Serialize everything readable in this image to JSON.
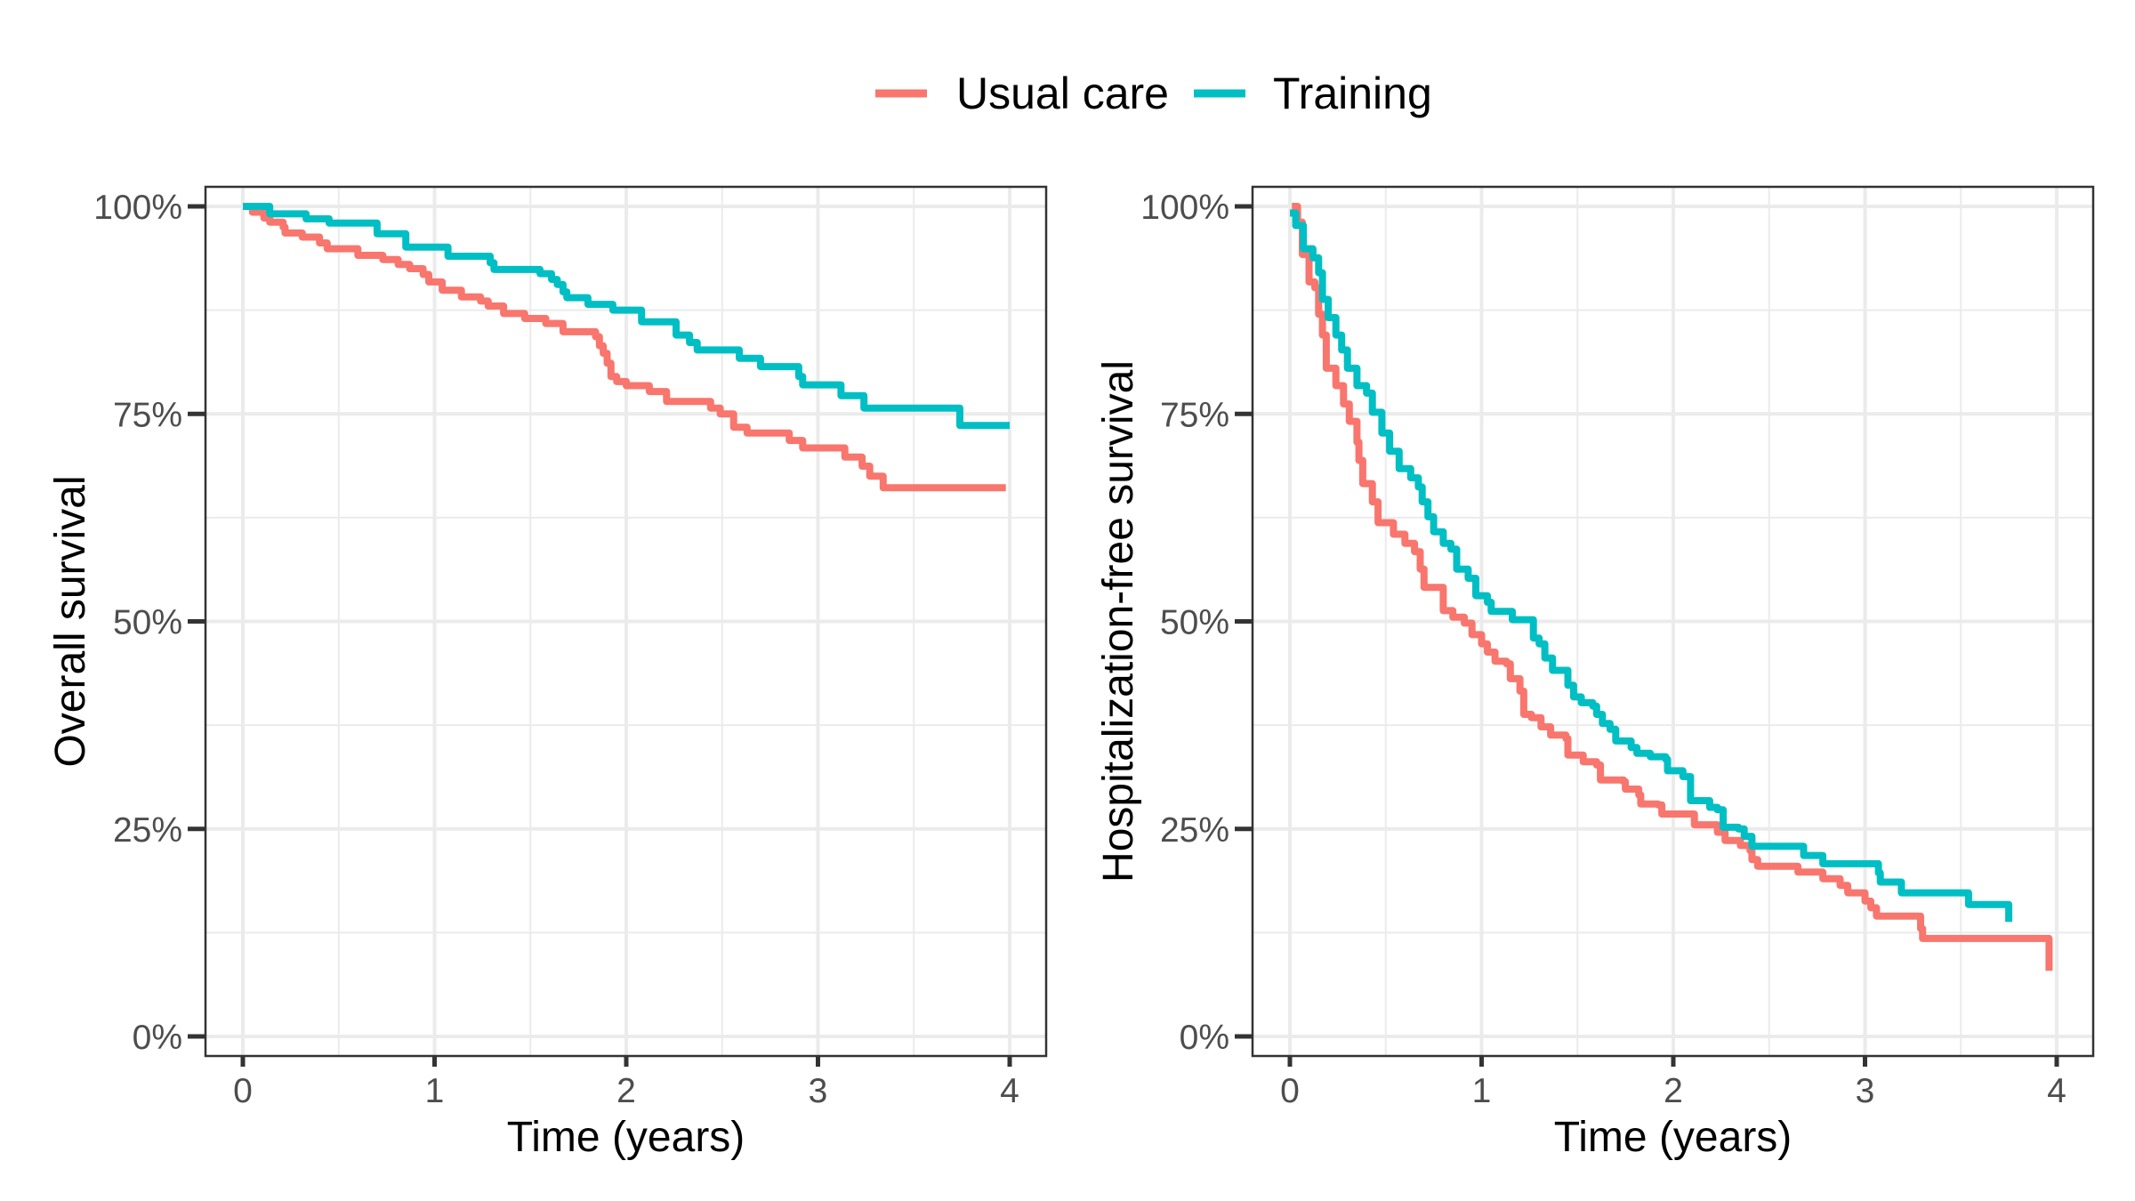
{
  "legend": {
    "position": "top",
    "items": [
      {
        "label": "Usual care",
        "color": "#F8766D"
      },
      {
        "label": "Training",
        "color": "#00BFC4"
      }
    ]
  },
  "chart_data": [
    {
      "type": "line",
      "subtype": "kaplan-meier step",
      "title": "",
      "xlabel": "Time (years)",
      "ylabel": "Overall survival",
      "xlim": [
        0,
        4
      ],
      "ylim": [
        0,
        100
      ],
      "x_ticks": [
        0,
        1,
        2,
        3,
        4
      ],
      "x_tick_labels": [
        "0",
        "1",
        "2",
        "3",
        "4"
      ],
      "y_ticks": [
        0,
        25,
        50,
        75,
        100
      ],
      "y_tick_labels": [
        "0%",
        "25%",
        "50%",
        "75%",
        "100%"
      ],
      "grid": true,
      "series": [
        {
          "name": "Usual care",
          "color": "#F8766D",
          "x": [
            0,
            0.05,
            0.11,
            0.14,
            0.21,
            0.22,
            0.31,
            0.4,
            0.44,
            0.6,
            0.73,
            0.81,
            0.87,
            0.94,
            0.97,
            1.04,
            1.14,
            1.24,
            1.28,
            1.36,
            1.47,
            1.58,
            1.67,
            1.84,
            1.86,
            1.88,
            1.9,
            1.92,
            1.95,
            2.0,
            2.12,
            2.21,
            2.44,
            2.49,
            2.56,
            2.63,
            2.85,
            2.92,
            3.14,
            3.23,
            3.27,
            3.34,
            3.98
          ],
          "y": [
            100,
            99.3,
            98.6,
            98.1,
            97.5,
            96.8,
            96.3,
            95.6,
            94.9,
            94.1,
            93.6,
            93.0,
            92.5,
            91.8,
            90.9,
            89.9,
            89.1,
            88.6,
            88.0,
            87.1,
            86.5,
            85.9,
            84.9,
            84.3,
            83.2,
            82.3,
            81.1,
            79.5,
            78.9,
            78.4,
            77.7,
            76.5,
            75.7,
            75.0,
            73.4,
            72.7,
            71.8,
            70.9,
            69.8,
            68.7,
            67.5,
            66.1,
            66.1
          ]
        },
        {
          "name": "Training",
          "color": "#00BFC4",
          "x": [
            0,
            0.14,
            0.33,
            0.45,
            0.7,
            0.85,
            1.07,
            1.29,
            1.31,
            1.55,
            1.61,
            1.64,
            1.67,
            1.69,
            1.8,
            1.93,
            2.08,
            2.26,
            2.33,
            2.37,
            2.59,
            2.7,
            2.9,
            2.92,
            3.12,
            3.24,
            3.74,
            4.0
          ],
          "y": [
            100,
            99.1,
            98.5,
            98.0,
            96.7,
            95.1,
            94.0,
            93.2,
            92.4,
            91.9,
            91.2,
            90.6,
            89.7,
            89.0,
            88.2,
            87.5,
            86.1,
            84.5,
            83.6,
            82.7,
            81.7,
            80.7,
            79.5,
            78.5,
            77.2,
            75.7,
            73.6,
            73.6
          ]
        }
      ]
    },
    {
      "type": "line",
      "subtype": "kaplan-meier step",
      "title": "",
      "xlabel": "Time (years)",
      "ylabel": "Hospitalization-free survival",
      "xlim": [
        0,
        4
      ],
      "ylim": [
        0,
        100
      ],
      "x_ticks": [
        0,
        1,
        2,
        3,
        4
      ],
      "x_tick_labels": [
        "0",
        "1",
        "2",
        "3",
        "4"
      ],
      "y_ticks": [
        0,
        25,
        50,
        75,
        100
      ],
      "y_tick_labels": [
        "0%",
        "25%",
        "50%",
        "75%",
        "100%"
      ],
      "grid": true,
      "series": [
        {
          "name": "Usual care",
          "color": "#F8766D",
          "x": [
            0.01,
            0.04,
            0.065,
            0.1,
            0.13,
            0.15,
            0.17,
            0.19,
            0.24,
            0.28,
            0.31,
            0.35,
            0.36,
            0.38,
            0.43,
            0.46,
            0.54,
            0.6,
            0.65,
            0.68,
            0.7,
            0.77,
            0.8,
            0.85,
            0.91,
            0.95,
            1.0,
            1.03,
            1.07,
            1.13,
            1.15,
            1.2,
            1.22,
            1.26,
            1.31,
            1.36,
            1.44,
            1.45,
            1.53,
            1.6,
            1.62,
            1.74,
            1.75,
            1.82,
            1.83,
            1.92,
            1.94,
            2.1,
            2.11,
            2.22,
            2.23,
            2.27,
            2.35,
            2.4,
            2.41,
            2.44,
            2.64,
            2.65,
            2.77,
            2.78,
            2.86,
            2.87,
            2.91,
            3.0,
            3.0,
            3.03,
            3.06,
            3.28,
            3.29,
            3.3,
            3.96,
            3.96
          ],
          "y": [
            100,
            98.1,
            94.2,
            90.9,
            90.2,
            87.0,
            84.5,
            80.5,
            78.4,
            76.2,
            74.1,
            71.6,
            69.4,
            66.6,
            64.4,
            61.9,
            60.5,
            59.4,
            58.4,
            56.3,
            54.1,
            54.1,
            51.3,
            50.5,
            49.8,
            48.4,
            47.3,
            46.3,
            45.2,
            44.9,
            43.1,
            41.6,
            38.8,
            38.4,
            37.3,
            36.3,
            35.9,
            33.9,
            33.1,
            32.7,
            30.9,
            30.7,
            29.8,
            29.1,
            28.0,
            27.9,
            26.8,
            26.8,
            25.5,
            25.5,
            24.6,
            23.6,
            23.0,
            22.4,
            21.3,
            20.5,
            20.5,
            19.8,
            19.8,
            19.0,
            19.0,
            18.2,
            17.3,
            17.3,
            16.3,
            15.5,
            14.5,
            14.5,
            13.0,
            11.8,
            11.8,
            7.9
          ]
        },
        {
          "name": "Training",
          "color": "#00BFC4",
          "x": [
            0,
            0.03,
            0.07,
            0.12,
            0.15,
            0.17,
            0.2,
            0.24,
            0.27,
            0.3,
            0.35,
            0.4,
            0.43,
            0.48,
            0.52,
            0.57,
            0.63,
            0.67,
            0.69,
            0.72,
            0.75,
            0.8,
            0.84,
            0.87,
            0.93,
            0.97,
            1.03,
            1.05,
            1.14,
            1.16,
            1.25,
            1.27,
            1.3,
            1.33,
            1.37,
            1.44,
            1.45,
            1.48,
            1.52,
            1.58,
            1.6,
            1.63,
            1.67,
            1.7,
            1.78,
            1.81,
            1.88,
            1.96,
            1.97,
            2.05,
            2.09,
            2.09,
            2.17,
            2.19,
            2.23,
            2.26,
            2.34,
            2.37,
            2.41,
            2.68,
            2.68,
            2.77,
            2.78,
            3.05,
            3.07,
            3.08,
            3.19,
            3.19,
            3.54,
            3.54,
            3.75,
            3.75
          ],
          "y": [
            99.2,
            97.7,
            94.9,
            93.8,
            92.0,
            88.8,
            86.6,
            84.5,
            82.7,
            80.5,
            78.4,
            77.5,
            75.2,
            72.7,
            70.5,
            68.4,
            67.3,
            66.2,
            64.4,
            62.6,
            60.8,
            59.4,
            58.7,
            56.3,
            55.2,
            53.1,
            52.3,
            51.2,
            51.2,
            50.2,
            50.2,
            48.0,
            47.3,
            45.6,
            44.1,
            44.1,
            42.3,
            40.9,
            40.2,
            39.8,
            38.8,
            37.7,
            37.0,
            35.6,
            34.8,
            34.1,
            33.7,
            33.4,
            32.0,
            31.3,
            30.6,
            28.4,
            28.4,
            27.6,
            27.3,
            25.2,
            25.0,
            24.1,
            22.9,
            22.9,
            21.8,
            21.8,
            20.8,
            20.8,
            19.7,
            18.6,
            18.6,
            17.3,
            17.3,
            15.9,
            15.9,
            13.8
          ]
        }
      ]
    }
  ]
}
